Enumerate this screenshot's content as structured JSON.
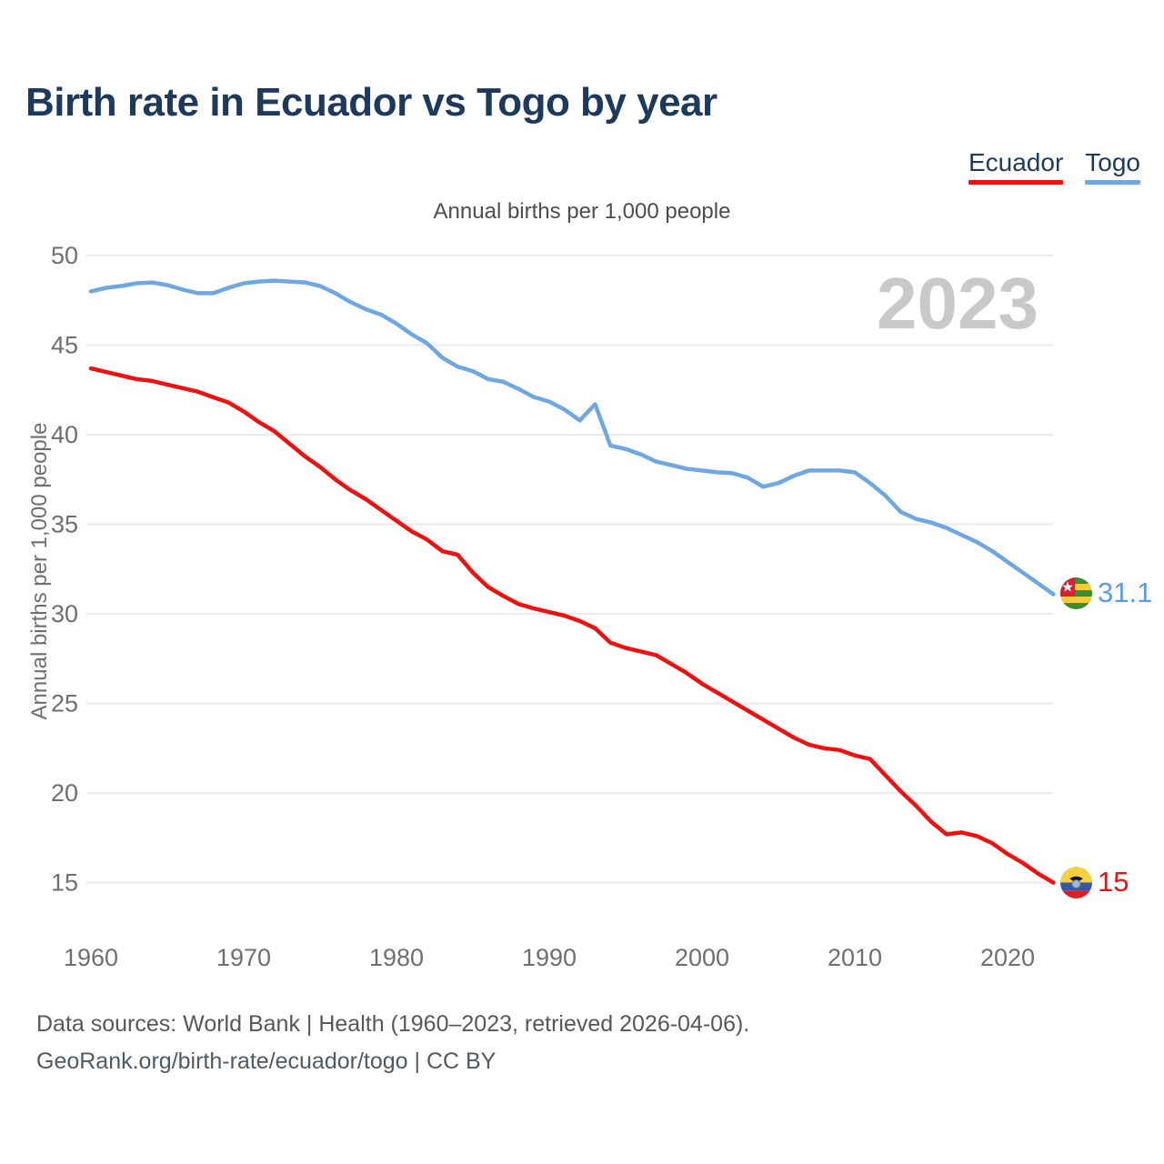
{
  "header": {
    "title": "Birth rate in Ecuador vs Togo by year"
  },
  "legend": {
    "items": [
      {
        "label": "Ecuador",
        "color": "#ee1111"
      },
      {
        "label": "Togo",
        "color": "#6fa8e0"
      }
    ]
  },
  "subtitle": "Annual births per 1,000 people",
  "watermark": "2023",
  "footer": {
    "line1": "Data sources: World Bank | Health (1960–2023, retrieved 2026-04-06).",
    "line2": "GeoRank.org/birth-rate/ecuador/togo | CC BY"
  },
  "chart_data": {
    "type": "line",
    "title": "Birth rate in Ecuador vs Togo by year",
    "ylabel": "Annual births per 1,000 people",
    "grid": true,
    "legend_position": "top-right",
    "ylim": [
      15,
      50
    ],
    "yticks": [
      15,
      20,
      25,
      30,
      35,
      40,
      45,
      50
    ],
    "xticks": [
      1960,
      1970,
      1980,
      1990,
      2000,
      2010,
      2020
    ],
    "x": [
      1960,
      1961,
      1962,
      1963,
      1964,
      1965,
      1966,
      1967,
      1968,
      1969,
      1970,
      1971,
      1972,
      1973,
      1974,
      1975,
      1976,
      1977,
      1978,
      1979,
      1980,
      1981,
      1982,
      1983,
      1984,
      1985,
      1986,
      1987,
      1988,
      1989,
      1990,
      1991,
      1992,
      1993,
      1994,
      1995,
      1996,
      1997,
      1998,
      1999,
      2000,
      2001,
      2002,
      2003,
      2004,
      2005,
      2006,
      2007,
      2008,
      2009,
      2010,
      2011,
      2012,
      2013,
      2014,
      2015,
      2016,
      2017,
      2018,
      2019,
      2020,
      2021,
      2022,
      2023
    ],
    "series": [
      {
        "name": "Ecuador",
        "color": "#ee1111",
        "end_label": "15",
        "end_value": 15,
        "values": [
          43.7,
          43.5,
          43.3,
          43.1,
          43.0,
          42.8,
          42.6,
          42.4,
          42.1,
          41.8,
          41.3,
          40.7,
          40.2,
          39.5,
          38.8,
          38.2,
          37.5,
          36.9,
          36.4,
          35.8,
          35.2,
          34.6,
          34.15,
          33.5,
          33.3,
          32.3,
          31.5,
          31.0,
          30.55,
          30.3,
          30.1,
          29.9,
          29.6,
          29.2,
          28.4,
          28.1,
          27.9,
          27.7,
          27.2,
          26.7,
          26.1,
          25.6,
          25.1,
          24.6,
          24.1,
          23.6,
          23.1,
          22.7,
          22.5,
          22.4,
          22.1,
          21.9,
          21.0,
          20.1,
          19.3,
          18.4,
          17.7,
          17.8,
          17.6,
          17.2,
          16.6,
          16.1,
          15.5,
          15.0
        ]
      },
      {
        "name": "Togo",
        "color": "#6fa8e0",
        "end_label": "31.1",
        "end_value": 31.1,
        "values": [
          48.0,
          48.2,
          48.3,
          48.45,
          48.5,
          48.35,
          48.1,
          47.9,
          47.9,
          48.2,
          48.45,
          48.55,
          48.6,
          48.55,
          48.5,
          48.3,
          47.9,
          47.4,
          47.0,
          46.7,
          46.2,
          45.6,
          45.1,
          44.3,
          43.8,
          43.55,
          43.1,
          42.95,
          42.55,
          42.1,
          41.85,
          41.4,
          40.8,
          41.7,
          39.4,
          39.2,
          38.9,
          38.5,
          38.3,
          38.1,
          38.0,
          37.9,
          37.85,
          37.6,
          37.1,
          37.3,
          37.7,
          38.0,
          38.0,
          38.0,
          37.9,
          37.3,
          36.6,
          35.7,
          35.3,
          35.1,
          34.8,
          34.4,
          34.0,
          33.5,
          32.9,
          32.3,
          31.7,
          31.1
        ]
      }
    ],
    "axis_text_color": "#6f6f6f",
    "gridline_color": "#ebebeb"
  }
}
